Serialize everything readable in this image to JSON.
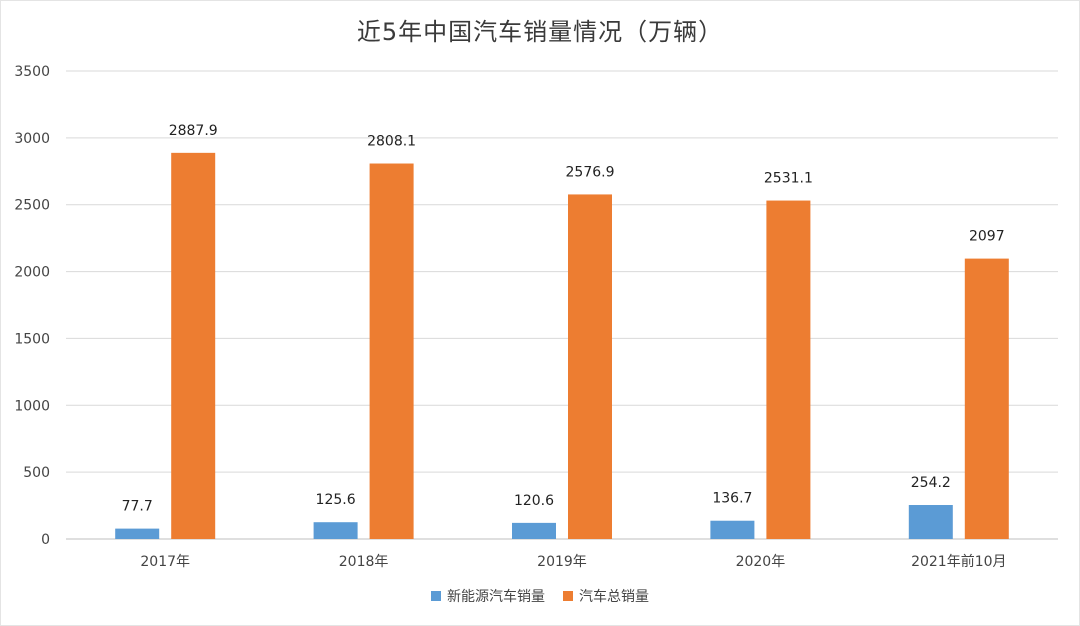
{
  "colors": {
    "series_blue": "#5b9bd5",
    "series_orange": "#ed7d31",
    "grid": "#d9d9d9"
  },
  "chart_data": {
    "type": "bar",
    "title": "近5年中国汽车销量情况（万辆）",
    "categories": [
      "2017年",
      "2018年",
      "2019年",
      "2020年",
      "2021年前10月"
    ],
    "series": [
      {
        "name": "新能源汽车销量",
        "values": [
          77.7,
          125.6,
          120.6,
          136.7,
          254.2
        ]
      },
      {
        "name": "汽车总销量",
        "values": [
          2887.9,
          2808.1,
          2576.9,
          2531.1,
          2097
        ]
      }
    ],
    "value_labels": [
      [
        "77.7",
        "125.6",
        "120.6",
        "136.7",
        "254.2"
      ],
      [
        "2887.9",
        "2808.1",
        "2576.9",
        "2531.1",
        "2097"
      ]
    ],
    "ylim": [
      0,
      3500
    ],
    "yticks": [
      0,
      500,
      1000,
      1500,
      2000,
      2500,
      3000,
      3500
    ],
    "grid": true,
    "legend": "bottom"
  }
}
